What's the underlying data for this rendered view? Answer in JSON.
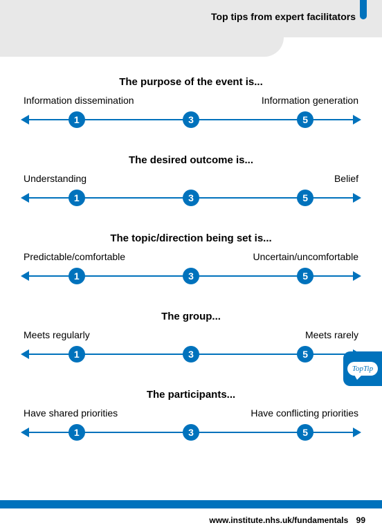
{
  "colors": {
    "primary": "#0072bc",
    "header_bg": "#e8e8e8",
    "text": "#000000",
    "white": "#ffffff"
  },
  "header": {
    "title": "Top tips from expert facilitators"
  },
  "scales": [
    {
      "heading": "The purpose of the event is...",
      "left_label": "Information dissemination",
      "right_label": "Information generation",
      "nodes": [
        {
          "pos_pct": 15,
          "value": "1"
        },
        {
          "pos_pct": 50,
          "value": "3"
        },
        {
          "pos_pct": 85,
          "value": "5"
        }
      ]
    },
    {
      "heading": "The desired outcome is...",
      "left_label": "Understanding",
      "right_label": "Belief",
      "nodes": [
        {
          "pos_pct": 15,
          "value": "1"
        },
        {
          "pos_pct": 50,
          "value": "3"
        },
        {
          "pos_pct": 85,
          "value": "5"
        }
      ]
    },
    {
      "heading": "The topic/direction being set is...",
      "left_label": "Predictable/comfortable",
      "right_label": "Uncertain/uncomfortable",
      "nodes": [
        {
          "pos_pct": 15,
          "value": "1"
        },
        {
          "pos_pct": 50,
          "value": "3"
        },
        {
          "pos_pct": 85,
          "value": "5"
        }
      ]
    },
    {
      "heading": "The group...",
      "left_label": "Meets regularly",
      "right_label": "Meets rarely",
      "nodes": [
        {
          "pos_pct": 15,
          "value": "1"
        },
        {
          "pos_pct": 50,
          "value": "3"
        },
        {
          "pos_pct": 85,
          "value": "5"
        }
      ]
    },
    {
      "heading": "The participants...",
      "left_label": "Have shared priorities",
      "right_label": "Have conflicting priorities",
      "nodes": [
        {
          "pos_pct": 15,
          "value": "1"
        },
        {
          "pos_pct": 50,
          "value": "3"
        },
        {
          "pos_pct": 85,
          "value": "5"
        }
      ]
    }
  ],
  "toptip": {
    "label": "TopTip"
  },
  "footer": {
    "url": "www.institute.nhs.uk/fundamentals",
    "page": "99"
  }
}
